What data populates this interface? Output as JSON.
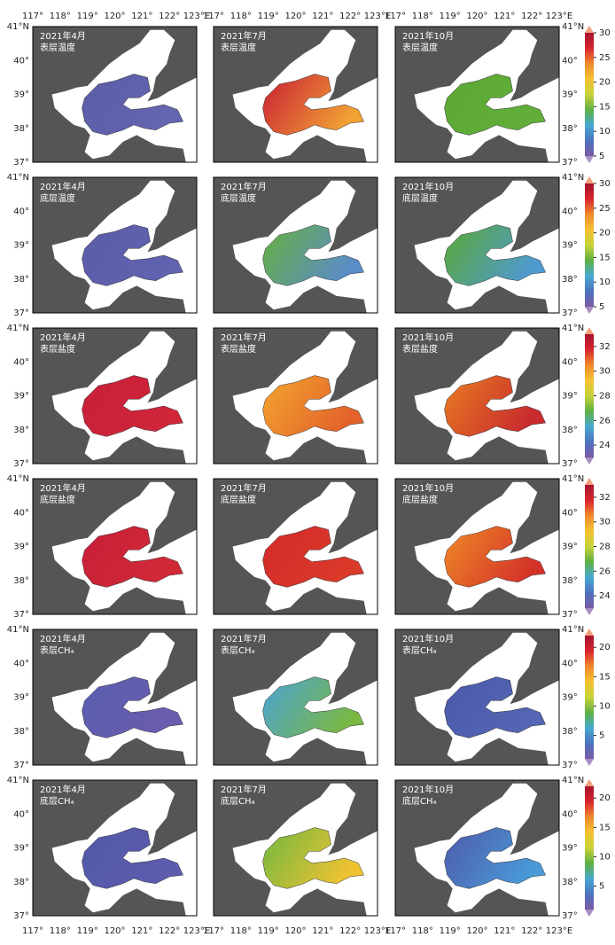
{
  "lon_ticks": [
    "117°",
    "118°",
    "119°",
    "120°",
    "121°",
    "122°",
    "123°E"
  ],
  "lat_ticks": [
    "41°N",
    "40°",
    "39°",
    "38°",
    "37°"
  ],
  "months": [
    "2021年4月",
    "2021年7月",
    "2021年10月"
  ],
  "colorbar_colors": [
    "#7b5aa6",
    "#4d72bd",
    "#46a9d0",
    "#5fb043",
    "#c8d23a",
    "#f3c232",
    "#ef8a2c",
    "#d8262e",
    "#a4142e"
  ],
  "colorbar_ends": [
    "#f2a07e",
    "#a98fc4"
  ],
  "rows": [
    {
      "variable": "表层温度",
      "colorbar": {
        "lim": [
          5,
          30
        ],
        "ticks": [
          30,
          25,
          20,
          15,
          10,
          5
        ]
      },
      "fills": [
        [
          "#5a5ca8",
          "#6466b2"
        ],
        [
          "#c81e34",
          "#f1a233"
        ],
        [
          "#5aa833",
          "#62ae3a"
        ]
      ]
    },
    {
      "variable": "底层温度",
      "colorbar": {
        "lim": [
          5,
          30
        ],
        "ticks": [
          30,
          25,
          20,
          15,
          10,
          5
        ]
      },
      "fills": [
        [
          "#5a5ca8",
          "#6163b0"
        ],
        [
          "#67b03e",
          "#5a8cc8"
        ],
        [
          "#5aa833",
          "#4f9ad0"
        ]
      ]
    },
    {
      "variable": "表层盐度",
      "colorbar": {
        "lim": [
          23,
          33
        ],
        "ticks": [
          32,
          30,
          28,
          26,
          24
        ]
      },
      "fills": [
        [
          "#c81e3a",
          "#d0263a"
        ],
        [
          "#f3a52f",
          "#e3622a"
        ],
        [
          "#e87d22",
          "#c82a2e"
        ]
      ]
    },
    {
      "variable": "底层盐度",
      "colorbar": {
        "lim": [
          23,
          33
        ],
        "ticks": [
          32,
          30,
          28,
          26,
          24
        ]
      },
      "fills": [
        [
          "#c81e3a",
          "#d02a36"
        ],
        [
          "#d42a2a",
          "#da3a2a"
        ],
        [
          "#ef8a28",
          "#d43228"
        ]
      ]
    },
    {
      "variable": "表层CH₄",
      "colorbar": {
        "lim": [
          1,
          22
        ],
        "ticks": [
          20,
          15,
          10,
          5
        ]
      },
      "fills": [
        [
          "#5a5eb0",
          "#6a5cae"
        ],
        [
          "#4aa2d6",
          "#7ab842"
        ],
        [
          "#4a5aaa",
          "#5566b4"
        ]
      ]
    },
    {
      "variable": "底层CH₄",
      "colorbar": {
        "lim": [
          1,
          22
        ],
        "ticks": [
          20,
          15,
          10,
          5
        ]
      },
      "fills": [
        [
          "#5058a8",
          "#5e5cae"
        ],
        [
          "#70b840",
          "#f0c232"
        ],
        [
          "#4e5aaa",
          "#4a9ad8"
        ]
      ]
    }
  ]
}
